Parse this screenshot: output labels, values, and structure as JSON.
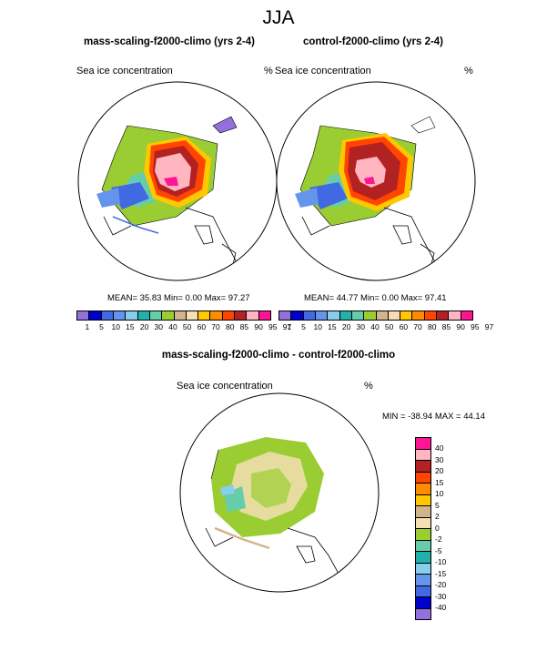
{
  "header": {
    "title": "JJA"
  },
  "panels": [
    {
      "title": "mass-scaling-f2000-climo (yrs 2-4)",
      "variable": "Sea ice concentration",
      "units": "%",
      "stats": "MEAN= 35.83  Min=  0.00  Max= 97.27"
    },
    {
      "title": "control-f2000-climo (yrs 2-4)",
      "variable": "Sea ice concentration",
      "units": "%",
      "stats": "MEAN= 44.77  Min=  0.00  Max= 97.41"
    }
  ],
  "diff": {
    "title": "mass-scaling-f2000-climo - control-f2000-climo",
    "variable": "Sea ice concentration",
    "units": "%",
    "stats": "MIN = -38.94 MAX =  44.14"
  },
  "colorbar": {
    "ticks": [
      "1",
      "5",
      "10",
      "15",
      "20",
      "30",
      "40",
      "50",
      "60",
      "70",
      "80",
      "85",
      "90",
      "95",
      "97"
    ],
    "colors": [
      "#9370db",
      "#0000cd",
      "#4169e1",
      "#6495ed",
      "#87ceeb",
      "#20b2aa",
      "#66cdaa",
      "#9acd32",
      "#d2b48c",
      "#f5deb3",
      "#ffc800",
      "#ff8c00",
      "#ff4500",
      "#b22222",
      "#ffb6c1",
      "#ff1493"
    ]
  },
  "diff_colorbar": {
    "ticks": [
      "40",
      "30",
      "20",
      "15",
      "10",
      "5",
      "2",
      "0",
      "-2",
      "-5",
      "-10",
      "-15",
      "-20",
      "-30",
      "-40"
    ],
    "colors": [
      "#ff1493",
      "#ffb6c1",
      "#b22222",
      "#ff4500",
      "#ff8c00",
      "#ffc800",
      "#d2b48c",
      "#f5deb3",
      "#9acd32",
      "#66cdaa",
      "#20b2aa",
      "#87ceeb",
      "#6495ed",
      "#4169e1",
      "#0000cd",
      "#9370db"
    ]
  }
}
